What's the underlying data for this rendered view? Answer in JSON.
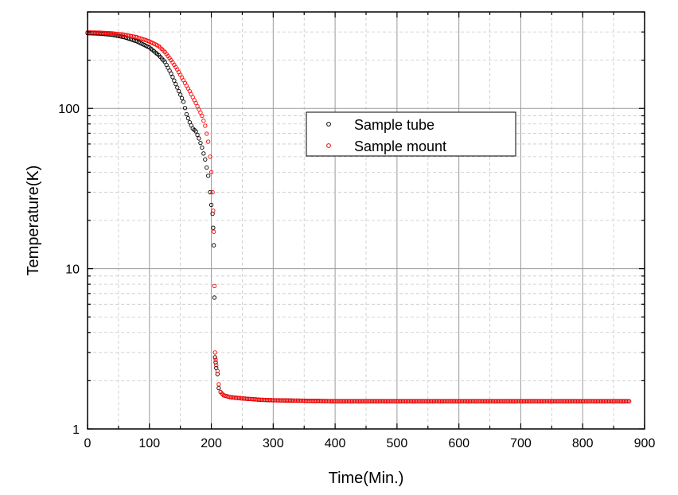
{
  "chart_data": {
    "type": "scatter",
    "title": "",
    "xlabel": "Time(Min.)",
    "ylabel": "Temperature(K)",
    "xlim": [
      0,
      900
    ],
    "ylim": [
      1,
      400
    ],
    "yscale": "log",
    "grid": true,
    "legend_position": "upper-center-right",
    "x_ticks": [
      "0",
      "100",
      "200",
      "300",
      "400",
      "500",
      "600",
      "700",
      "800",
      "900"
    ],
    "y_ticks": [
      "1",
      "10",
      "100"
    ],
    "series": [
      {
        "name": "Sample tube",
        "color": "#000000",
        "marker": "open-circle",
        "points": [
          [
            0,
            295
          ],
          [
            20,
            293
          ],
          [
            40,
            288
          ],
          [
            60,
            278
          ],
          [
            80,
            262
          ],
          [
            100,
            240
          ],
          [
            115,
            215
          ],
          [
            125,
            195
          ],
          [
            135,
            165
          ],
          [
            145,
            135
          ],
          [
            155,
            110
          ],
          [
            160,
            92
          ],
          [
            165,
            82
          ],
          [
            170,
            75
          ],
          [
            175,
            72
          ],
          [
            180,
            65
          ],
          [
            185,
            57
          ],
          [
            190,
            48
          ],
          [
            195,
            38
          ],
          [
            198,
            30
          ],
          [
            200,
            25
          ],
          [
            202,
            22
          ],
          [
            203,
            18
          ],
          [
            204,
            14
          ],
          [
            205,
            6.6
          ],
          [
            206,
            2.8
          ],
          [
            207,
            2.6
          ],
          [
            208,
            2.4
          ],
          [
            210,
            2.2
          ],
          [
            212,
            1.8
          ],
          [
            215,
            1.7
          ],
          [
            220,
            1.62
          ],
          [
            230,
            1.58
          ],
          [
            250,
            1.55
          ],
          [
            280,
            1.52
          ],
          [
            300,
            1.51
          ],
          [
            350,
            1.5
          ],
          [
            400,
            1.49
          ],
          [
            500,
            1.49
          ],
          [
            600,
            1.49
          ],
          [
            700,
            1.49
          ],
          [
            800,
            1.49
          ],
          [
            875,
            1.49
          ]
        ]
      },
      {
        "name": "Sample mount",
        "color": "#ff0000",
        "marker": "open-circle",
        "points": [
          [
            0,
            298
          ],
          [
            20,
            297
          ],
          [
            40,
            294
          ],
          [
            60,
            288
          ],
          [
            80,
            278
          ],
          [
            100,
            262
          ],
          [
            115,
            245
          ],
          [
            125,
            225
          ],
          [
            135,
            200
          ],
          [
            145,
            175
          ],
          [
            155,
            150
          ],
          [
            165,
            128
          ],
          [
            175,
            108
          ],
          [
            185,
            90
          ],
          [
            190,
            78
          ],
          [
            195,
            62
          ],
          [
            198,
            50
          ],
          [
            200,
            40
          ],
          [
            202,
            30
          ],
          [
            203,
            23
          ],
          [
            204,
            17
          ],
          [
            205,
            7.8
          ],
          [
            206,
            3.0
          ],
          [
            207,
            2.7
          ],
          [
            208,
            2.5
          ],
          [
            210,
            2.3
          ],
          [
            212,
            1.9
          ],
          [
            215,
            1.7
          ],
          [
            220,
            1.62
          ],
          [
            230,
            1.58
          ],
          [
            250,
            1.55
          ],
          [
            280,
            1.52
          ],
          [
            300,
            1.51
          ],
          [
            350,
            1.5
          ],
          [
            400,
            1.49
          ],
          [
            500,
            1.49
          ],
          [
            600,
            1.49
          ],
          [
            700,
            1.49
          ],
          [
            800,
            1.49
          ],
          [
            875,
            1.49
          ]
        ]
      }
    ]
  }
}
